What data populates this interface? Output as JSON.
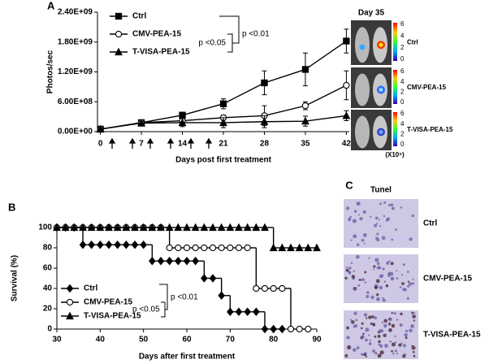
{
  "chart_data": [
    {
      "type": "line",
      "panel_label": "A",
      "ylabel": "Photos/sec",
      "xlabel": "Days post first treatment",
      "x": [
        0,
        7,
        14,
        21,
        28,
        35,
        42
      ],
      "series": [
        {
          "name": "Ctrl",
          "color": "#000000",
          "marker": "square",
          "values": [
            50000000,
            180000000,
            330000000,
            560000000,
            980000000,
            1250000000,
            1820000000
          ],
          "errors": [
            20000000,
            30000000,
            60000000,
            100000000,
            240000000,
            330000000,
            240000000
          ]
        },
        {
          "name": "CMV-PEA-15",
          "color": "#000000",
          "marker": "circle",
          "values": [
            50000000,
            180000000,
            220000000,
            280000000,
            320000000,
            520000000,
            930000000
          ],
          "errors": [
            20000000,
            30000000,
            50000000,
            50000000,
            200000000,
            80000000,
            290000000
          ]
        },
        {
          "name": "T-VISA-PEA-15",
          "color": "#000000",
          "marker": "triangle",
          "values": [
            50000000,
            170000000,
            180000000,
            180000000,
            200000000,
            210000000,
            320000000
          ],
          "errors": [
            20000000,
            30000000,
            80000000,
            100000000,
            120000000,
            100000000,
            100000000
          ]
        }
      ],
      "xlim": [
        -0.5,
        42.5
      ],
      "ylim": [
        0,
        2400000000
      ],
      "xticks": [
        0,
        7,
        14,
        21,
        28,
        35,
        42
      ],
      "yticks": [
        {
          "value": 0,
          "label": "0.00E+00"
        },
        {
          "value": 600000000,
          "label": "6.00E+08"
        },
        {
          "value": 1200000000,
          "label": "1.20E+09"
        },
        {
          "value": 1800000000,
          "label": "1.80E+09"
        },
        {
          "value": 2400000000,
          "label": "2.40E+09"
        }
      ],
      "legend": "upper left",
      "annotations": [
        "p <0.05",
        "p <0.01"
      ]
    },
    {
      "type": "step",
      "panel_label": "B",
      "ylabel": "Survival (%)",
      "xlabel": "Days after first treatment",
      "series": [
        {
          "name": "Ctrl",
          "color": "#000000",
          "marker": "diamond",
          "x": [
            30,
            32,
            34,
            36,
            38,
            40,
            42,
            44,
            46,
            48,
            50,
            52,
            54,
            56,
            58,
            60,
            62,
            64,
            66,
            68,
            70,
            72,
            74,
            76,
            78,
            80,
            82
          ],
          "values": [
            100,
            100,
            100,
            83,
            83,
            83,
            83,
            83,
            83,
            83,
            83,
            67,
            67,
            67,
            67,
            67,
            67,
            50,
            50,
            33,
            17,
            17,
            17,
            17,
            0,
            0,
            0
          ]
        },
        {
          "name": "CMV-PEA-15",
          "color": "#000000",
          "marker": "circle",
          "x": [
            30,
            32,
            34,
            36,
            38,
            40,
            42,
            44,
            46,
            48,
            50,
            52,
            54,
            56,
            58,
            60,
            62,
            64,
            66,
            68,
            70,
            72,
            74,
            76,
            78,
            80,
            82,
            84,
            86,
            88
          ],
          "values": [
            100,
            100,
            100,
            100,
            100,
            100,
            100,
            100,
            100,
            100,
            100,
            100,
            100,
            80,
            80,
            80,
            80,
            80,
            80,
            80,
            80,
            80,
            80,
            40,
            40,
            40,
            40,
            0,
            0,
            0
          ]
        },
        {
          "name": "T-VISA-PEA-15",
          "color": "#000000",
          "marker": "triangle",
          "x": [
            30,
            32,
            34,
            36,
            38,
            40,
            42,
            44,
            46,
            48,
            50,
            52,
            54,
            56,
            58,
            60,
            62,
            64,
            66,
            68,
            70,
            72,
            74,
            76,
            78,
            80,
            82,
            84,
            86,
            88,
            90
          ],
          "values": [
            100,
            100,
            100,
            100,
            100,
            100,
            100,
            100,
            100,
            100,
            100,
            100,
            100,
            100,
            100,
            100,
            100,
            100,
            100,
            100,
            100,
            100,
            100,
            100,
            100,
            80,
            80,
            80,
            80,
            80,
            80
          ]
        }
      ],
      "xlim": [
        30,
        90
      ],
      "ylim": [
        0,
        100
      ],
      "xticks": [
        30,
        40,
        50,
        60,
        70,
        80,
        90
      ],
      "yticks": [
        0,
        20,
        40,
        60,
        80,
        100
      ],
      "legend": "lower left",
      "annotations": [
        "p <0.05",
        "p <0.01"
      ]
    }
  ],
  "imaging": {
    "title": "Day 35",
    "groups": [
      "Ctrl",
      "CMV-PEA-15",
      "T-VISA-PEA-15"
    ],
    "colorbar_ticks": [
      "6",
      "4",
      "2",
      "0"
    ],
    "colorbar_unit": "(X10⁵)"
  },
  "tunel": {
    "panel_label": "C",
    "title": "Tunel",
    "groups": [
      "Ctrl",
      "CMV-PEA-15",
      "T-VISA-PEA-15"
    ]
  }
}
